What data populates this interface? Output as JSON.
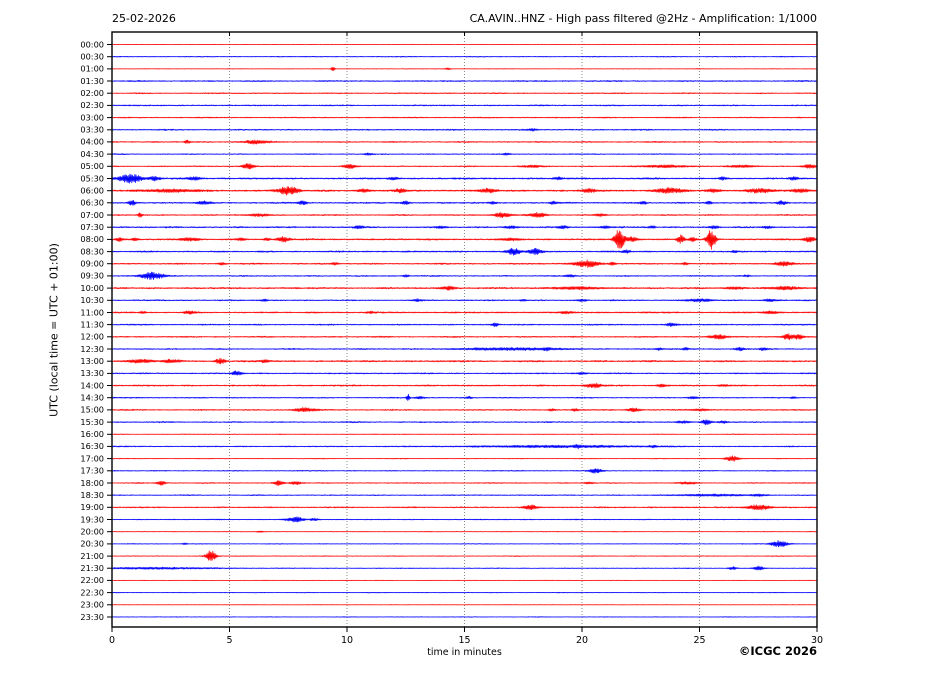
{
  "titles": {
    "date": "25-02-2026",
    "station": "CA.AVIN..HNZ - High pass filtered @2Hz - Amplification: 1/1000"
  },
  "y_axis_label": "UTC (local time = UTC + 01:00)",
  "x_axis_label": "time in minutes",
  "credit": "©ICGC 2026",
  "colors": {
    "red": "#ff0000",
    "blue": "#0000ff",
    "grid": "#888888",
    "frame": "#000000",
    "text": "#000000"
  },
  "chart_data": {
    "type": "line",
    "title": "CA.AVIN..HNZ - High pass filtered @2Hz - Amplification: 1/1000",
    "subtitle": "25-02-2026",
    "xlabel": "time in minutes",
    "ylabel": "UTC (local time = UTC + 01:00)",
    "x_range_minutes": [
      0,
      30
    ],
    "x_ticks": [
      0,
      5,
      10,
      15,
      20,
      25,
      30
    ],
    "grid": "vertical-dotted-at-5min",
    "row_interval_minutes": 30,
    "rows": [
      {
        "label": "00:00",
        "color": "red",
        "noise": 0.25,
        "events": []
      },
      {
        "label": "00:30",
        "color": "blue",
        "noise": 0.5,
        "events": []
      },
      {
        "label": "01:00",
        "color": "red",
        "noise": 0.3,
        "events": [
          [
            9.4,
            2.5,
            0.05
          ],
          [
            14.3,
            1.2,
            0.08
          ]
        ]
      },
      {
        "label": "01:30",
        "color": "blue",
        "noise": 0.7,
        "events": []
      },
      {
        "label": "02:00",
        "color": "red",
        "noise": 0.6,
        "events": []
      },
      {
        "label": "02:30",
        "color": "blue",
        "noise": 0.7,
        "events": []
      },
      {
        "label": "03:00",
        "color": "red",
        "noise": 0.6,
        "events": []
      },
      {
        "label": "03:30",
        "color": "blue",
        "noise": 0.7,
        "events": [
          [
            17.9,
            1.0,
            0.15
          ]
        ]
      },
      {
        "label": "04:00",
        "color": "red",
        "noise": 0.7,
        "events": [
          [
            3.2,
            1.5,
            0.08
          ],
          [
            6.1,
            2.0,
            0.35
          ]
        ]
      },
      {
        "label": "04:30",
        "color": "blue",
        "noise": 0.55,
        "events": [
          [
            10.9,
            1.0,
            0.12
          ],
          [
            16.8,
            1.0,
            0.12
          ]
        ]
      },
      {
        "label": "05:00",
        "color": "red",
        "noise": 0.6,
        "events": [
          [
            5.8,
            3.0,
            0.18
          ],
          [
            10.1,
            2.2,
            0.18
          ],
          [
            17.8,
            1.2,
            0.3
          ],
          [
            23.5,
            1.2,
            0.8
          ],
          [
            26.8,
            1.2,
            0.4
          ],
          [
            29.7,
            1.8,
            0.2
          ]
        ]
      },
      {
        "label": "05:30",
        "color": "blue",
        "noise": 0.9,
        "events": [
          [
            0.8,
            4.5,
            0.35
          ],
          [
            1.8,
            2.0,
            0.2
          ],
          [
            3.5,
            1.5,
            0.2
          ],
          [
            12.0,
            1.2,
            0.15
          ],
          [
            19.0,
            1.2,
            0.15
          ],
          [
            26.0,
            1.2,
            0.1
          ],
          [
            29.0,
            1.5,
            0.15
          ]
        ]
      },
      {
        "label": "06:00",
        "color": "red",
        "noise": 1.0,
        "events": [
          [
            2.5,
            1.5,
            0.7
          ],
          [
            7.5,
            4.0,
            0.3
          ],
          [
            10.7,
            1.8,
            0.2
          ],
          [
            12.3,
            1.8,
            0.15
          ],
          [
            16.0,
            2.0,
            0.25
          ],
          [
            20.3,
            1.8,
            0.2
          ],
          [
            23.7,
            2.5,
            0.4
          ],
          [
            25.6,
            1.8,
            0.2
          ],
          [
            27.6,
            2.0,
            0.4
          ],
          [
            29.3,
            1.8,
            0.25
          ]
        ]
      },
      {
        "label": "06:30",
        "color": "blue",
        "noise": 0.8,
        "events": [
          [
            0.85,
            2.5,
            0.1
          ],
          [
            3.9,
            1.6,
            0.2
          ],
          [
            8.1,
            2.0,
            0.12
          ],
          [
            12.5,
            1.6,
            0.12
          ],
          [
            16.2,
            1.3,
            0.1
          ],
          [
            18.8,
            1.6,
            0.1
          ],
          [
            22.6,
            1.6,
            0.1
          ],
          [
            25.4,
            1.3,
            0.1
          ],
          [
            28.5,
            2.0,
            0.15
          ]
        ]
      },
      {
        "label": "07:00",
        "color": "red",
        "noise": 0.7,
        "events": [
          [
            1.2,
            2.0,
            0.07
          ],
          [
            6.3,
            1.3,
            0.3
          ],
          [
            16.6,
            2.5,
            0.25
          ],
          [
            18.1,
            2.5,
            0.25
          ],
          [
            20.8,
            1.2,
            0.15
          ]
        ]
      },
      {
        "label": "07:30",
        "color": "blue",
        "noise": 0.85,
        "events": [
          [
            10.5,
            1.2,
            0.15
          ],
          [
            14.0,
            1.2,
            0.15
          ],
          [
            17.0,
            1.3,
            0.2
          ],
          [
            19.2,
            1.3,
            0.15
          ],
          [
            21.0,
            1.3,
            0.15
          ],
          [
            23.0,
            1.2,
            0.1
          ],
          [
            25.6,
            1.3,
            0.15
          ],
          [
            27.9,
            1.2,
            0.15
          ]
        ]
      },
      {
        "label": "08:00",
        "color": "red",
        "noise": 0.9,
        "events": [
          [
            0.3,
            1.6,
            0.1
          ],
          [
            1.0,
            1.6,
            0.1
          ],
          [
            3.3,
            1.6,
            0.3
          ],
          [
            5.5,
            1.3,
            0.1
          ],
          [
            6.6,
            1.3,
            0.1
          ],
          [
            7.3,
            2.5,
            0.2
          ],
          [
            17.0,
            1.3,
            0.2
          ],
          [
            21.6,
            11.0,
            0.15
          ],
          [
            22.1,
            2.5,
            0.2
          ],
          [
            24.2,
            4.0,
            0.12
          ],
          [
            24.7,
            2.0,
            0.1
          ],
          [
            25.5,
            10.0,
            0.13
          ],
          [
            29.7,
            2.5,
            0.2
          ]
        ]
      },
      {
        "label": "08:30",
        "color": "blue",
        "noise": 0.8,
        "events": [
          [
            17.1,
            3.5,
            0.2
          ],
          [
            18.0,
            3.0,
            0.2
          ],
          [
            21.9,
            1.4,
            0.12
          ],
          [
            26.5,
            1.2,
            0.1
          ]
        ]
      },
      {
        "label": "09:00",
        "color": "red",
        "noise": 0.75,
        "events": [
          [
            4.7,
            1.3,
            0.12
          ],
          [
            9.5,
            1.2,
            0.1
          ],
          [
            20.2,
            3.5,
            0.35
          ],
          [
            21.3,
            1.8,
            0.1
          ],
          [
            24.4,
            1.2,
            0.1
          ],
          [
            28.6,
            2.5,
            0.25
          ]
        ]
      },
      {
        "label": "09:30",
        "color": "blue",
        "noise": 0.65,
        "events": [
          [
            1.7,
            3.5,
            0.35
          ],
          [
            12.5,
            1.2,
            0.1
          ],
          [
            19.5,
            1.2,
            0.15
          ],
          [
            27.0,
            0.9,
            0.1
          ]
        ]
      },
      {
        "label": "10:00",
        "color": "red",
        "noise": 0.9,
        "events": [
          [
            14.3,
            2.0,
            0.2
          ],
          [
            19.7,
            1.2,
            0.8
          ],
          [
            26.5,
            1.2,
            0.3
          ],
          [
            28.7,
            1.6,
            0.4
          ]
        ]
      },
      {
        "label": "10:30",
        "color": "blue",
        "noise": 0.7,
        "events": [
          [
            6.5,
            1.2,
            0.1
          ],
          [
            13.0,
            1.2,
            0.1
          ],
          [
            17.5,
            1.0,
            0.1
          ],
          [
            20.0,
            1.2,
            0.15
          ],
          [
            25.0,
            1.3,
            0.4
          ],
          [
            28.0,
            1.3,
            0.2
          ]
        ]
      },
      {
        "label": "11:00",
        "color": "red",
        "noise": 0.8,
        "events": [
          [
            1.3,
            1.2,
            0.1
          ],
          [
            3.3,
            1.6,
            0.15
          ],
          [
            11.0,
            1.2,
            0.15
          ],
          [
            19.3,
            1.3,
            0.2
          ],
          [
            28.0,
            1.3,
            0.25
          ]
        ]
      },
      {
        "label": "11:30",
        "color": "blue",
        "noise": 0.7,
        "events": [
          [
            16.3,
            1.8,
            0.1
          ],
          [
            23.8,
            1.8,
            0.15
          ]
        ]
      },
      {
        "label": "12:00",
        "color": "red",
        "noise": 0.7,
        "events": [
          [
            25.8,
            2.2,
            0.25
          ],
          [
            28.8,
            3.0,
            0.2
          ],
          [
            29.2,
            2.5,
            0.15
          ]
        ]
      },
      {
        "label": "12:30",
        "color": "blue",
        "noise": 0.7,
        "events": [
          [
            17.0,
            1.2,
            1.5
          ],
          [
            18.5,
            1.8,
            0.15
          ],
          [
            23.3,
            1.3,
            0.1
          ],
          [
            24.4,
            1.3,
            0.1
          ],
          [
            26.7,
            1.6,
            0.15
          ],
          [
            27.7,
            1.3,
            0.1
          ]
        ]
      },
      {
        "label": "13:00",
        "color": "red",
        "noise": 0.9,
        "events": [
          [
            1.2,
            1.6,
            0.4
          ],
          [
            2.5,
            1.6,
            0.25
          ],
          [
            4.6,
            2.5,
            0.15
          ],
          [
            6.5,
            1.3,
            0.15
          ]
        ]
      },
      {
        "label": "13:30",
        "color": "blue",
        "noise": 0.7,
        "events": [
          [
            5.3,
            2.2,
            0.15
          ],
          [
            20.0,
            1.0,
            0.15
          ]
        ]
      },
      {
        "label": "14:00",
        "color": "red",
        "noise": 0.8,
        "events": [
          [
            20.5,
            2.2,
            0.25
          ],
          [
            23.4,
            1.3,
            0.15
          ],
          [
            26.0,
            1.0,
            0.15
          ]
        ]
      },
      {
        "label": "14:30",
        "color": "blue",
        "noise": 0.6,
        "events": [
          [
            12.6,
            3.5,
            0.05
          ],
          [
            13.1,
            1.3,
            0.15
          ],
          [
            15.2,
            1.0,
            0.1
          ],
          [
            24.7,
            1.3,
            0.15
          ],
          [
            29.0,
            1.0,
            0.1
          ]
        ]
      },
      {
        "label": "15:00",
        "color": "red",
        "noise": 0.7,
        "events": [
          [
            8.2,
            2.2,
            0.3
          ],
          [
            18.7,
            1.2,
            0.1
          ],
          [
            19.7,
            1.2,
            0.1
          ],
          [
            22.2,
            1.8,
            0.2
          ],
          [
            25.0,
            0.9,
            0.3
          ]
        ]
      },
      {
        "label": "15:30",
        "color": "blue",
        "noise": 0.7,
        "events": [
          [
            24.3,
            1.3,
            0.2
          ],
          [
            25.3,
            2.5,
            0.15
          ],
          [
            26.0,
            1.3,
            0.15
          ]
        ]
      },
      {
        "label": "16:00",
        "color": "red",
        "noise": 0.4,
        "events": []
      },
      {
        "label": "16:30",
        "color": "blue",
        "noise": 0.6,
        "events": [
          [
            19.0,
            1.1,
            2.5
          ],
          [
            19.8,
            2.2,
            0.15
          ],
          [
            23.0,
            1.3,
            0.15
          ]
        ]
      },
      {
        "label": "17:00",
        "color": "red",
        "noise": 0.4,
        "events": [
          [
            26.4,
            2.8,
            0.2
          ]
        ]
      },
      {
        "label": "17:30",
        "color": "blue",
        "noise": 0.5,
        "events": [
          [
            20.6,
            2.2,
            0.2
          ]
        ]
      },
      {
        "label": "18:00",
        "color": "red",
        "noise": 0.55,
        "events": [
          [
            2.1,
            2.5,
            0.12
          ],
          [
            7.1,
            2.5,
            0.15
          ],
          [
            7.8,
            1.6,
            0.15
          ],
          [
            20.3,
            0.9,
            0.15
          ],
          [
            24.5,
            1.0,
            0.3
          ]
        ]
      },
      {
        "label": "18:30",
        "color": "blue",
        "noise": 0.55,
        "events": [
          [
            25.5,
            1.0,
            1.0
          ],
          [
            27.5,
            1.1,
            0.3
          ]
        ]
      },
      {
        "label": "19:00",
        "color": "red",
        "noise": 0.7,
        "events": [
          [
            17.8,
            2.2,
            0.2
          ],
          [
            27.5,
            2.5,
            0.35
          ]
        ]
      },
      {
        "label": "19:30",
        "color": "blue",
        "noise": 0.5,
        "events": [
          [
            7.8,
            2.5,
            0.25
          ],
          [
            8.6,
            1.2,
            0.15
          ]
        ]
      },
      {
        "label": "20:00",
        "color": "red",
        "noise": 0.35,
        "events": [
          [
            6.3,
            0.8,
            0.1
          ]
        ]
      },
      {
        "label": "20:30",
        "color": "blue",
        "noise": 0.4,
        "events": [
          [
            3.1,
            1.0,
            0.07
          ],
          [
            28.4,
            3.5,
            0.25
          ]
        ]
      },
      {
        "label": "21:00",
        "color": "red",
        "noise": 0.4,
        "events": [
          [
            4.2,
            6.0,
            0.15
          ]
        ]
      },
      {
        "label": "21:30",
        "color": "blue",
        "noise": 0.45,
        "events": [
          [
            1.8,
            0.9,
            1.8
          ],
          [
            26.4,
            1.6,
            0.12
          ],
          [
            27.5,
            2.0,
            0.15
          ]
        ]
      },
      {
        "label": "22:00",
        "color": "red",
        "noise": 0.3,
        "events": []
      },
      {
        "label": "22:30",
        "color": "blue",
        "noise": 0.4,
        "events": []
      },
      {
        "label": "23:00",
        "color": "red",
        "noise": 0.25,
        "events": []
      },
      {
        "label": "23:30",
        "color": "blue",
        "noise": 0.35,
        "events": []
      }
    ]
  }
}
